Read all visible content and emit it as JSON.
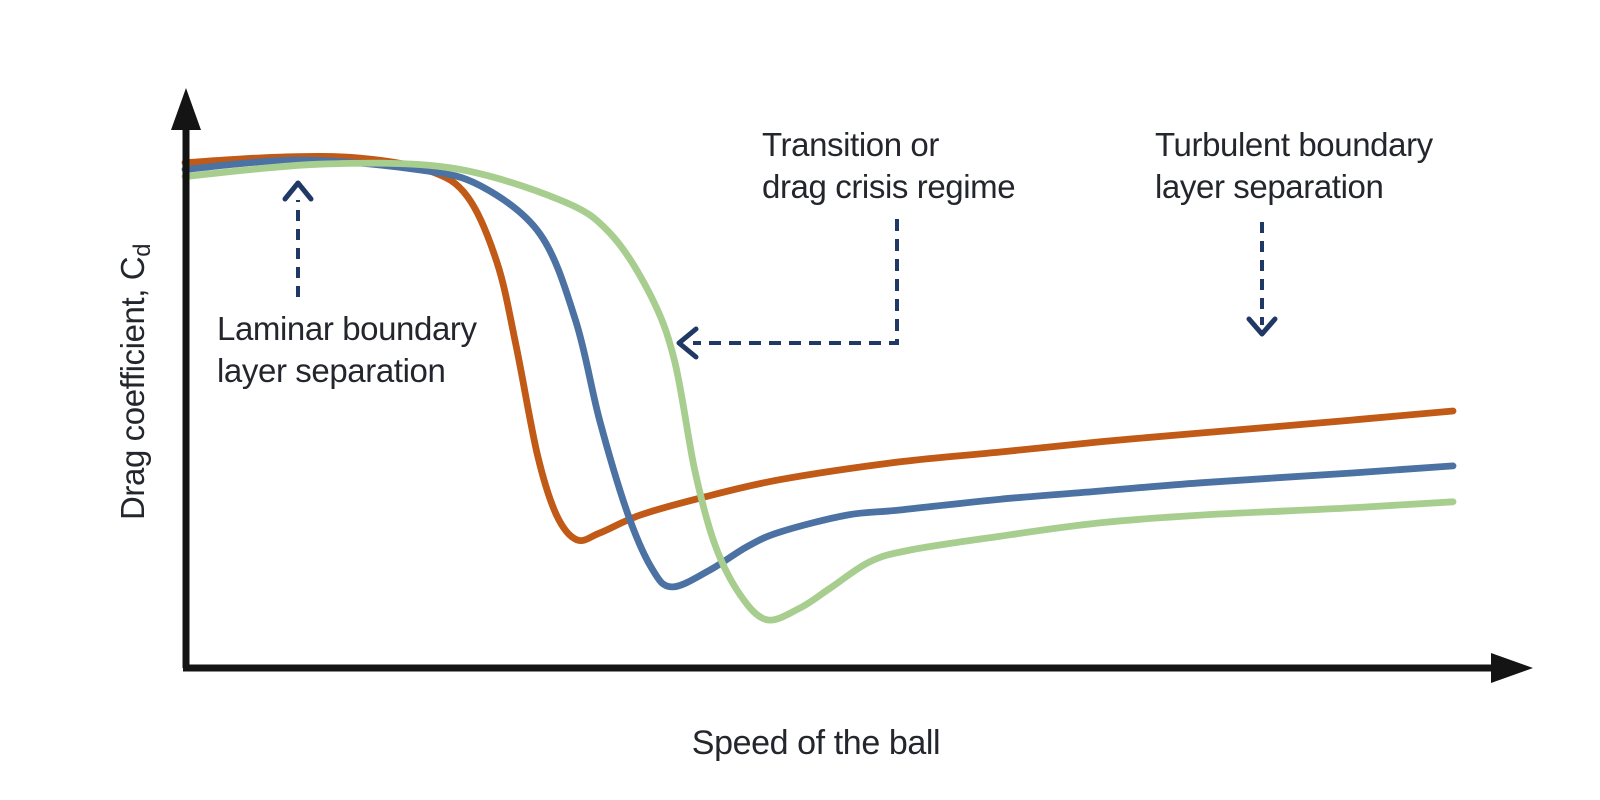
{
  "colors": {
    "orange": "#C05A16",
    "blue": "#4B72A3",
    "green": "#A8CE8F",
    "arrow_navy": "#1F3864",
    "axis": "#141414",
    "text": "#24262D"
  },
  "axes": {
    "x_label": "Speed of the ball",
    "y_label_main": "Drag coefficient, C",
    "y_label_sub": "d"
  },
  "annotations": {
    "laminar": {
      "lines": [
        "Laminar boundary",
        "layer separation"
      ]
    },
    "transition": {
      "lines": [
        "Transition or",
        "drag crisis regime"
      ]
    },
    "turbulent": {
      "lines": [
        "Turbulent boundary",
        "layer separation"
      ]
    }
  },
  "chart_data": {
    "type": "line",
    "title": "",
    "xlabel": "Speed of the ball",
    "ylabel": "Drag coefficient, Cd",
    "axes_numeric": false,
    "grid": false,
    "legend": "none",
    "units": "normalized 0-1 fractions of each axis (the diagram shows no numeric tick labels)",
    "annotations": [
      {
        "text": "Laminar boundary layer separation",
        "arrow": "dashed, points up at the flat high-Cd plateau"
      },
      {
        "text": "Transition or drag crisis regime",
        "arrow": "dashed elbow, points left at the steep drop of the green curve"
      },
      {
        "text": "Turbulent boundary layer separation",
        "arrow": "dashed, points down toward the post-crisis region"
      }
    ],
    "series": [
      {
        "name": "orange",
        "color": "#C05A16",
        "drag_crisis": "occurs at lowest speed",
        "points": [
          [
            0,
            0.985
          ],
          [
            0.075,
            0.996
          ],
          [
            0.138,
            0.994
          ],
          [
            0.193,
            0.969
          ],
          [
            0.223,
            0.918
          ],
          [
            0.246,
            0.791
          ],
          [
            0.261,
            0.63
          ],
          [
            0.278,
            0.415
          ],
          [
            0.293,
            0.298
          ],
          [
            0.309,
            0.25
          ],
          [
            0.327,
            0.263
          ],
          [
            0.359,
            0.298
          ],
          [
            0.406,
            0.331
          ],
          [
            0.469,
            0.367
          ],
          [
            0.564,
            0.402
          ],
          [
            0.643,
            0.421
          ],
          [
            0.722,
            0.441
          ],
          [
            0.801,
            0.458
          ],
          [
            0.919,
            0.483
          ],
          [
            1,
            0.501
          ]
        ]
      },
      {
        "name": "blue",
        "color": "#4B72A3",
        "drag_crisis": "occurs at intermediate speed",
        "points": [
          [
            0,
            0.972
          ],
          [
            0.091,
            0.99
          ],
          [
            0.185,
            0.971
          ],
          [
            0.233,
            0.94
          ],
          [
            0.28,
            0.846
          ],
          [
            0.308,
            0.678
          ],
          [
            0.327,
            0.483
          ],
          [
            0.349,
            0.302
          ],
          [
            0.368,
            0.195
          ],
          [
            0.384,
            0.158
          ],
          [
            0.414,
            0.191
          ],
          [
            0.443,
            0.236
          ],
          [
            0.469,
            0.265
          ],
          [
            0.522,
            0.298
          ],
          [
            0.564,
            0.308
          ],
          [
            0.643,
            0.329
          ],
          [
            0.722,
            0.345
          ],
          [
            0.801,
            0.361
          ],
          [
            0.919,
            0.38
          ],
          [
            1,
            0.394
          ]
        ]
      },
      {
        "name": "green",
        "color": "#A8CE8F",
        "drag_crisis": "occurs at highest speed",
        "points": [
          [
            0,
            0.958
          ],
          [
            0.106,
            0.982
          ],
          [
            0.209,
            0.975
          ],
          [
            0.296,
            0.912
          ],
          [
            0.335,
            0.848
          ],
          [
            0.367,
            0.727
          ],
          [
            0.386,
            0.6
          ],
          [
            0.402,
            0.386
          ],
          [
            0.418,
            0.24
          ],
          [
            0.438,
            0.142
          ],
          [
            0.459,
            0.094
          ],
          [
            0.485,
            0.117
          ],
          [
            0.509,
            0.156
          ],
          [
            0.54,
            0.207
          ],
          [
            0.572,
            0.23
          ],
          [
            0.643,
            0.257
          ],
          [
            0.722,
            0.283
          ],
          [
            0.801,
            0.298
          ],
          [
            0.919,
            0.312
          ],
          [
            1,
            0.324
          ]
        ]
      }
    ]
  }
}
